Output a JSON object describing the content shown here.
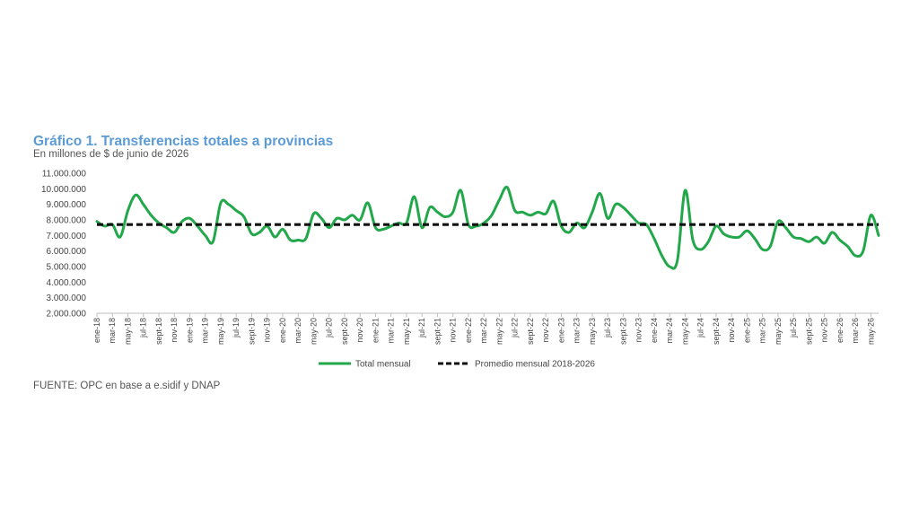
{
  "chart_data": {
    "type": "line",
    "title": "Gráfico 1. Transferencias totales a provincias",
    "subtitle": "En millones de $ de junio de 2026",
    "source": "FUENTE: OPC en base a e.sidif y DNAP",
    "ylim": [
      2000000,
      11000000
    ],
    "y_ticks": [
      2000000,
      3000000,
      4000000,
      5000000,
      6000000,
      7000000,
      8000000,
      9000000,
      10000000,
      11000000
    ],
    "y_tick_labels": [
      "2.000.000",
      "3.000.000",
      "4.000.000",
      "5.000.000",
      "6.000.000",
      "7.000.000",
      "8.000.000",
      "9.000.000",
      "10.000.000",
      "11.000.000"
    ],
    "x_tick_labels": [
      "ene-18",
      "mar-18",
      "may-18",
      "jul-18",
      "sept-18",
      "nov-18",
      "ene-19",
      "mar-19",
      "may-19",
      "jul-19",
      "sept-19",
      "nov-19",
      "ene-20",
      "mar-20",
      "may-20",
      "jul-20",
      "sept-20",
      "nov-20",
      "ene-21",
      "mar-21",
      "may-21",
      "jul-21",
      "sept-21",
      "nov-21",
      "ene-22",
      "mar-22",
      "may-22",
      "jul-22",
      "sept-22",
      "nov-22",
      "ene-23",
      "mar-23",
      "may-23",
      "jul-23",
      "sept-23",
      "nov-23",
      "ene-24",
      "mar-24",
      "may-24",
      "jul-24",
      "sept-24",
      "nov-24",
      "ene-25",
      "mar-25",
      "may-25",
      "jul-25",
      "sept-25",
      "nov-25",
      "ene-26",
      "mar-26",
      "may-26"
    ],
    "grid": false,
    "legend_position": "bottom",
    "series": [
      {
        "name": "Total mensual",
        "color": "#22a84a",
        "style": "solid",
        "values": [
          7900000,
          7600000,
          7700000,
          6900000,
          8600000,
          9600000,
          9000000,
          8300000,
          7800000,
          7500000,
          7200000,
          7900000,
          8100000,
          7600000,
          7000000,
          6600000,
          9100000,
          9000000,
          8600000,
          8200000,
          7100000,
          7200000,
          7600000,
          6900000,
          7400000,
          6700000,
          6700000,
          6800000,
          8400000,
          8100000,
          7500000,
          8100000,
          8000000,
          8300000,
          8000000,
          9100000,
          7500000,
          7400000,
          7600000,
          7800000,
          7800000,
          9500000,
          7500000,
          8800000,
          8500000,
          8200000,
          8500000,
          9900000,
          7700000,
          7600000,
          7800000,
          8300000,
          9300000,
          10100000,
          8600000,
          8500000,
          8300000,
          8500000,
          8400000,
          9200000,
          7600000,
          7200000,
          7800000,
          7500000,
          8500000,
          9700000,
          8100000,
          9000000,
          8800000,
          8300000,
          7800000,
          7700000,
          6800000,
          5700000,
          5000000,
          5400000,
          9900000,
          6700000,
          6100000,
          6600000,
          7600000,
          7100000,
          6900000,
          6900000,
          7300000,
          6800000,
          6100000,
          6300000,
          7900000,
          7500000,
          6900000,
          6800000,
          6600000,
          6900000,
          6500000,
          7200000,
          6700000,
          6300000,
          5700000,
          6000000,
          8300000,
          7000000
        ]
      },
      {
        "name": "Promedio mensual 2018-2026",
        "color": "#111111",
        "style": "dashed",
        "value": 7700000
      }
    ]
  }
}
